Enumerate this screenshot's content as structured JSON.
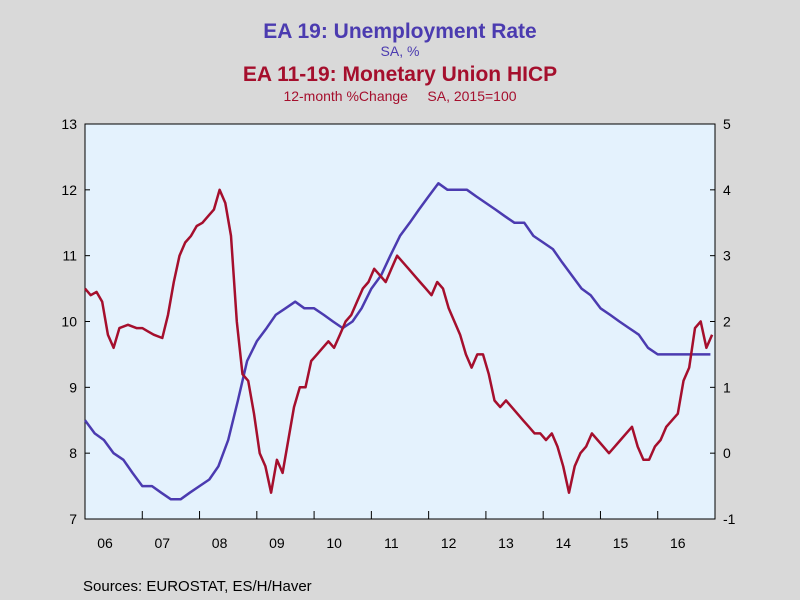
{
  "header": {
    "title1": "EA 19: Unemployment Rate",
    "subtitle1": "SA, %",
    "title2": "EA 11-19: Monetary Union HICP",
    "subtitle2": "12-month %Change     SA, 2015=100"
  },
  "footer": {
    "source": "Sources:  EUROSTAT, ES/H/Haver"
  },
  "colors": {
    "background": "#d9d9d9",
    "plot_background": "#e4f2fd",
    "unemployment": "#4b3bb0",
    "hicp": "#a50f2d"
  },
  "chart_data": {
    "type": "line",
    "x_labels": [
      "06",
      "07",
      "08",
      "09",
      "10",
      "11",
      "12",
      "13",
      "14",
      "15",
      "16"
    ],
    "left_axis": {
      "ylim": [
        7,
        13
      ],
      "ticks": [
        7,
        8,
        9,
        10,
        11,
        12,
        13
      ]
    },
    "right_axis": {
      "ylim": [
        -1,
        5
      ],
      "ticks": [
        -1,
        0,
        1,
        2,
        3,
        4,
        5
      ]
    },
    "grid": false,
    "legend": "none",
    "series": [
      {
        "name": "EA 19: Unemployment Rate",
        "axis": "left",
        "color": "#4b3bb0",
        "x": [
          2006.0,
          2006.17,
          2006.33,
          2006.5,
          2006.67,
          2006.83,
          2007.0,
          2007.17,
          2007.33,
          2007.5,
          2007.67,
          2007.83,
          2008.0,
          2008.17,
          2008.33,
          2008.5,
          2008.67,
          2008.83,
          2009.0,
          2009.17,
          2009.33,
          2009.5,
          2009.67,
          2009.83,
          2010.0,
          2010.17,
          2010.33,
          2010.5,
          2010.67,
          2010.83,
          2011.0,
          2011.17,
          2011.33,
          2011.5,
          2011.67,
          2011.83,
          2012.0,
          2012.17,
          2012.33,
          2012.5,
          2012.67,
          2012.83,
          2013.0,
          2013.17,
          2013.33,
          2013.5,
          2013.67,
          2013.83,
          2014.0,
          2014.17,
          2014.33,
          2014.5,
          2014.67,
          2014.83,
          2015.0,
          2015.17,
          2015.33,
          2015.5,
          2015.67,
          2015.83,
          2016.0,
          2016.17,
          2016.33,
          2016.5,
          2016.67,
          2016.83,
          2016.92
        ],
        "values": [
          8.5,
          8.3,
          8.2,
          8.0,
          7.9,
          7.7,
          7.5,
          7.5,
          7.4,
          7.3,
          7.3,
          7.4,
          7.5,
          7.6,
          7.8,
          8.2,
          8.8,
          9.4,
          9.7,
          9.9,
          10.1,
          10.2,
          10.3,
          10.2,
          10.2,
          10.1,
          10.0,
          9.9,
          10.0,
          10.2,
          10.5,
          10.7,
          11.0,
          11.3,
          11.5,
          11.7,
          11.9,
          12.1,
          12.0,
          12.0,
          12.0,
          11.9,
          11.8,
          11.7,
          11.6,
          11.5,
          11.5,
          11.3,
          11.2,
          11.1,
          10.9,
          10.7,
          10.5,
          10.4,
          10.2,
          10.1,
          10.0,
          9.9,
          9.8,
          9.6,
          9.5,
          9.5,
          9.5,
          9.5,
          9.5,
          9.5,
          9.5
        ]
      },
      {
        "name": "EA 11-19: Monetary Union HICP",
        "axis": "right",
        "color": "#a50f2d",
        "x": [
          2006.0,
          2006.1,
          2006.2,
          2006.3,
          2006.4,
          2006.5,
          2006.6,
          2006.75,
          2006.9,
          2007.0,
          2007.1,
          2007.2,
          2007.35,
          2007.45,
          2007.55,
          2007.65,
          2007.75,
          2007.85,
          2007.95,
          2008.05,
          2008.15,
          2008.25,
          2008.35,
          2008.45,
          2008.55,
          2008.65,
          2008.75,
          2008.85,
          2008.95,
          2009.05,
          2009.15,
          2009.25,
          2009.35,
          2009.45,
          2009.55,
          2009.65,
          2009.75,
          2009.85,
          2009.95,
          2010.05,
          2010.15,
          2010.25,
          2010.35,
          2010.45,
          2010.55,
          2010.65,
          2010.75,
          2010.85,
          2010.95,
          2011.05,
          2011.15,
          2011.25,
          2011.35,
          2011.45,
          2011.55,
          2011.65,
          2011.75,
          2011.85,
          2011.95,
          2012.05,
          2012.15,
          2012.25,
          2012.35,
          2012.45,
          2012.55,
          2012.65,
          2012.75,
          2012.85,
          2012.95,
          2013.05,
          2013.15,
          2013.25,
          2013.35,
          2013.45,
          2013.55,
          2013.65,
          2013.75,
          2013.85,
          2013.95,
          2014.05,
          2014.15,
          2014.25,
          2014.35,
          2014.45,
          2014.55,
          2014.65,
          2014.75,
          2014.85,
          2014.95,
          2015.05,
          2015.15,
          2015.25,
          2015.35,
          2015.45,
          2015.55,
          2015.65,
          2015.75,
          2015.85,
          2015.95,
          2016.05,
          2016.15,
          2016.25,
          2016.35,
          2016.45,
          2016.55,
          2016.65,
          2016.75,
          2016.85,
          2016.95
        ],
        "values": [
          2.5,
          2.4,
          2.45,
          2.3,
          1.8,
          1.6,
          1.9,
          1.95,
          1.9,
          1.9,
          1.85,
          1.8,
          1.75,
          2.1,
          2.6,
          3.0,
          3.2,
          3.3,
          3.45,
          3.5,
          3.6,
          3.7,
          4.0,
          3.8,
          3.3,
          2.0,
          1.2,
          1.1,
          0.6,
          0.0,
          -0.2,
          -0.6,
          -0.1,
          -0.3,
          0.2,
          0.7,
          1.0,
          1.0,
          1.4,
          1.5,
          1.6,
          1.7,
          1.6,
          1.8,
          2.0,
          2.1,
          2.3,
          2.5,
          2.6,
          2.8,
          2.7,
          2.6,
          2.8,
          3.0,
          2.9,
          2.8,
          2.7,
          2.6,
          2.5,
          2.4,
          2.6,
          2.5,
          2.2,
          2.0,
          1.8,
          1.5,
          1.3,
          1.5,
          1.5,
          1.2,
          0.8,
          0.7,
          0.8,
          0.7,
          0.6,
          0.5,
          0.4,
          0.3,
          0.3,
          0.2,
          0.3,
          0.1,
          -0.2,
          -0.6,
          -0.2,
          0.0,
          0.1,
          0.3,
          0.2,
          0.1,
          0.0,
          0.1,
          0.2,
          0.3,
          0.4,
          0.1,
          -0.1,
          -0.1,
          0.1,
          0.2,
          0.4,
          0.5,
          0.6,
          1.1,
          1.3,
          1.9,
          2.0,
          1.6,
          1.8
        ]
      }
    ]
  }
}
